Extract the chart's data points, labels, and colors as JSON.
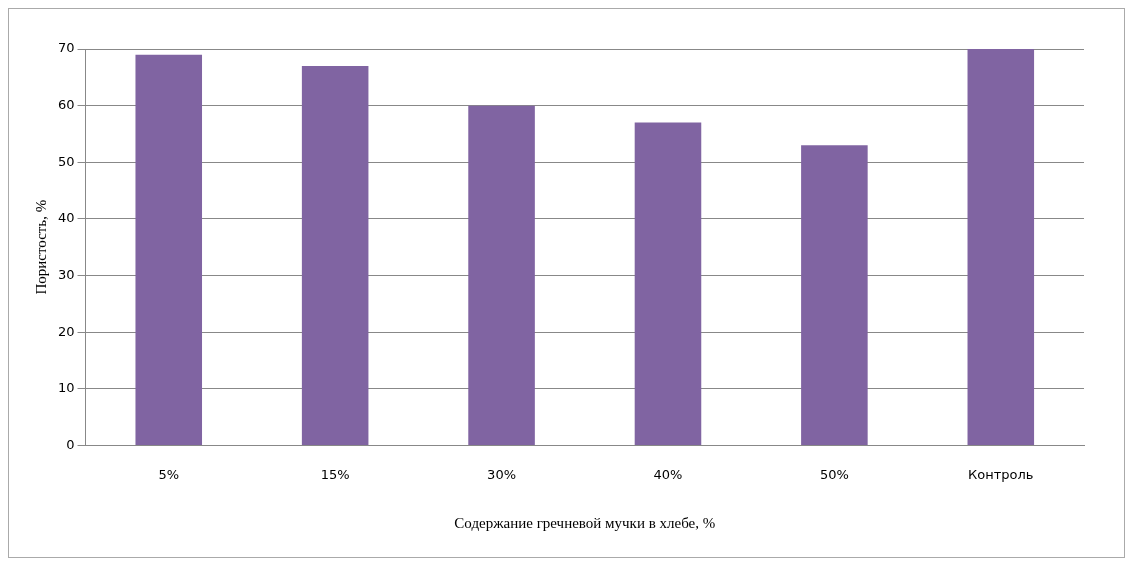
{
  "chart_data": {
    "type": "bar",
    "xlabel": "Содержание гречневой мучки в хлебе, %",
    "ylabel": "Пористость, %",
    "categories": [
      "5%",
      "15%",
      "30%",
      "40%",
      "50%",
      "Контроль"
    ],
    "values": [
      69,
      67,
      60,
      57,
      53,
      70
    ],
    "color": "#8064a2",
    "ylim": [
      0,
      70
    ],
    "yticks": [
      0,
      10,
      20,
      30,
      40,
      50,
      60,
      70
    ],
    "grid": "y",
    "legend": false
  }
}
